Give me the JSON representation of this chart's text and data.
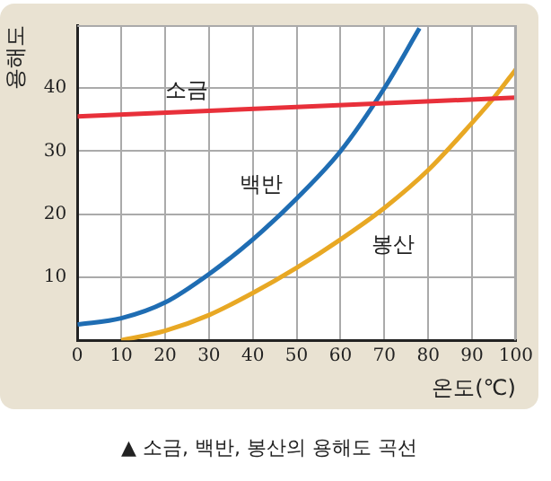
{
  "chart_data": {
    "type": "line",
    "title": "▲ 소금, 백반, 봉산의 용해도 곡선",
    "xlabel": "온도(℃)",
    "ylabel": "용해도",
    "xlim": [
      0,
      100
    ],
    "xticks": [
      0,
      10,
      20,
      30,
      40,
      50,
      60,
      70,
      80,
      90,
      100
    ],
    "ylim": [
      0,
      50
    ],
    "yticks": [
      10,
      20,
      30,
      40
    ],
    "grid": true,
    "legend": false,
    "marker": "none",
    "series": [
      {
        "name": "소금",
        "color": "#e8303a",
        "x": [
          0,
          50,
          100
        ],
        "values": [
          35.5,
          37,
          38.5
        ]
      },
      {
        "name": "백반",
        "color": "#1f6db3",
        "x": [
          0,
          10,
          20,
          30,
          40,
          50,
          60,
          70,
          78
        ],
        "values": [
          2.5,
          3.5,
          6,
          10.5,
          16,
          22.5,
          30,
          40,
          49.5
        ]
      },
      {
        "name": "봉산",
        "color": "#e8a824",
        "x": [
          10,
          20,
          30,
          40,
          50,
          60,
          70,
          80,
          90,
          95,
          100
        ],
        "values": [
          0,
          1.5,
          4,
          7.5,
          11.5,
          16,
          21,
          27,
          34.5,
          38.5,
          43
        ]
      }
    ]
  }
}
